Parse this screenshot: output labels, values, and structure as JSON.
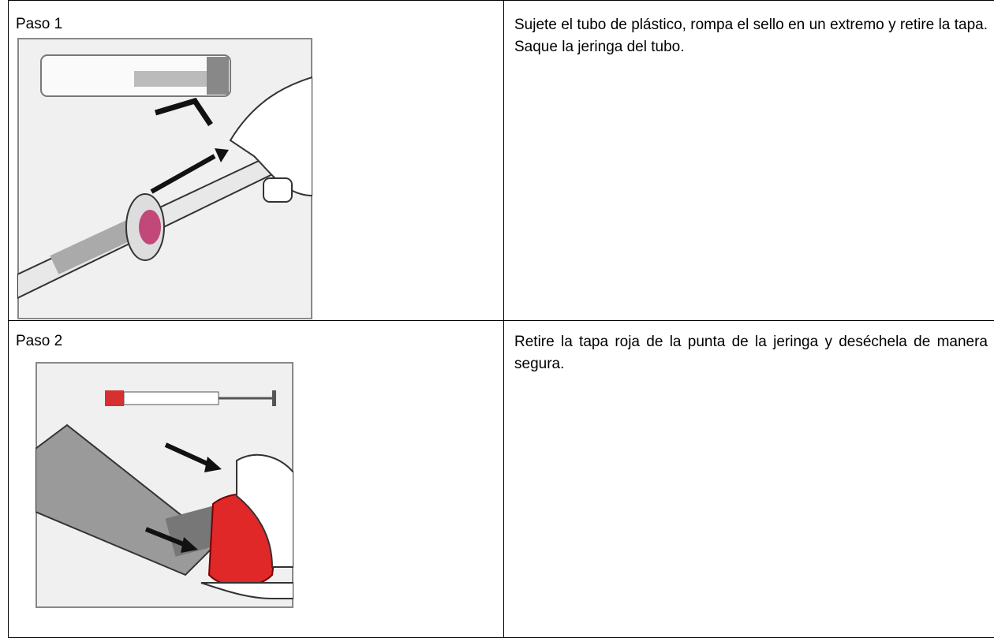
{
  "table": {
    "rows": [
      {
        "step": "Paso 1",
        "text": "Sujete el tubo de plástico, rompa el sello en un extremo y retire la tapa. Saque la jeringa del tubo."
      },
      {
        "step": "Paso 2",
        "text": "Retire la tapa roja de la punta de la jeringa y deséchela de manera segura."
      }
    ]
  }
}
